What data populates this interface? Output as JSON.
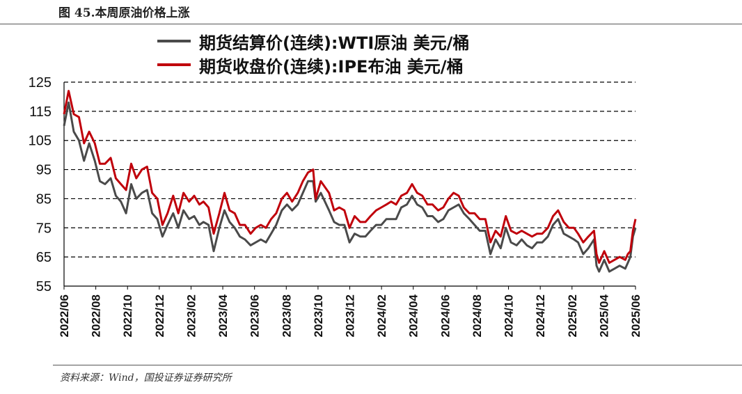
{
  "header": {
    "figure_title": "图 45.本周原油价格上涨"
  },
  "footer": {
    "source": "资料来源：Wind，国投证券证券研究所"
  },
  "colors": {
    "wti": "#4a4a4a",
    "ipe": "#c0000b",
    "grid": "#000000"
  },
  "chart_data": {
    "type": "line",
    "title": "",
    "xlabel": "",
    "ylabel": "",
    "ylim": [
      55,
      125
    ],
    "yticks": [
      55,
      65,
      75,
      85,
      95,
      105,
      115,
      125
    ],
    "xticks": [
      "2022/06",
      "2022/08",
      "2022/10",
      "2022/12",
      "2023/02",
      "2023/04",
      "2023/06",
      "2023/08",
      "2023/10",
      "2023/12",
      "2024/02",
      "2024/04",
      "2024/06",
      "2024/08",
      "2024/10",
      "2024/12",
      "2025/02",
      "2025/04",
      "2025/06"
    ],
    "grid": "horizontal dashed",
    "legend_position": "top-center",
    "series": [
      {
        "name": "期货结算价(连续):WTI原油 美元/桶",
        "color": "#4a4a4a",
        "points": [
          [
            "2022/06/01",
            110
          ],
          [
            "2022/06/10",
            118
          ],
          [
            "2022/06/20",
            108
          ],
          [
            "2022/06/30",
            105
          ],
          [
            "2022/07/10",
            98
          ],
          [
            "2022/07/20",
            104
          ],
          [
            "2022/07/31",
            98
          ],
          [
            "2022/08/10",
            91
          ],
          [
            "2022/08/20",
            90
          ],
          [
            "2022/08/31",
            92
          ],
          [
            "2022/09/10",
            86
          ],
          [
            "2022/09/20",
            84
          ],
          [
            "2022/09/30",
            80
          ],
          [
            "2022/10/10",
            90
          ],
          [
            "2022/10/20",
            85
          ],
          [
            "2022/10/31",
            87
          ],
          [
            "2022/11/10",
            88
          ],
          [
            "2022/11/20",
            80
          ],
          [
            "2022/11/30",
            78
          ],
          [
            "2022/12/10",
            72
          ],
          [
            "2022/12/20",
            76
          ],
          [
            "2022/12/31",
            80
          ],
          [
            "2023/01/10",
            75
          ],
          [
            "2023/01/20",
            81
          ],
          [
            "2023/01/31",
            78
          ],
          [
            "2023/02/10",
            79
          ],
          [
            "2023/02/20",
            76
          ],
          [
            "2023/02/28",
            77
          ],
          [
            "2023/03/10",
            76
          ],
          [
            "2023/03/20",
            67
          ],
          [
            "2023/03/31",
            75
          ],
          [
            "2023/04/10",
            81
          ],
          [
            "2023/04/20",
            77
          ],
          [
            "2023/04/30",
            75
          ],
          [
            "2023/05/10",
            72
          ],
          [
            "2023/05/20",
            71
          ],
          [
            "2023/05/31",
            69
          ],
          [
            "2023/06/10",
            70
          ],
          [
            "2023/06/20",
            71
          ],
          [
            "2023/06/30",
            70
          ],
          [
            "2023/07/10",
            73
          ],
          [
            "2023/07/20",
            76
          ],
          [
            "2023/07/31",
            81
          ],
          [
            "2023/08/10",
            83
          ],
          [
            "2023/08/20",
            81
          ],
          [
            "2023/08/31",
            83
          ],
          [
            "2023/09/10",
            87
          ],
          [
            "2023/09/20",
            91
          ],
          [
            "2023/09/30",
            91
          ],
          [
            "2023/10/05",
            84
          ],
          [
            "2023/10/15",
            87
          ],
          [
            "2023/10/31",
            81
          ],
          [
            "2023/11/10",
            77
          ],
          [
            "2023/11/20",
            76
          ],
          [
            "2023/11/30",
            76
          ],
          [
            "2023/12/10",
            70
          ],
          [
            "2023/12/20",
            73
          ],
          [
            "2023/12/31",
            72
          ],
          [
            "2024/01/10",
            72
          ],
          [
            "2024/01/20",
            74
          ],
          [
            "2024/01/31",
            76
          ],
          [
            "2024/02/10",
            76
          ],
          [
            "2024/02/20",
            78
          ],
          [
            "2024/02/29",
            78
          ],
          [
            "2024/03/10",
            78
          ],
          [
            "2024/03/20",
            82
          ],
          [
            "2024/03/31",
            83
          ],
          [
            "2024/04/10",
            86
          ],
          [
            "2024/04/20",
            83
          ],
          [
            "2024/04/30",
            82
          ],
          [
            "2024/05/10",
            79
          ],
          [
            "2024/05/20",
            79
          ],
          [
            "2024/05/31",
            77
          ],
          [
            "2024/06/10",
            78
          ],
          [
            "2024/06/20",
            81
          ],
          [
            "2024/06/30",
            82
          ],
          [
            "2024/07/10",
            83
          ],
          [
            "2024/07/20",
            80
          ],
          [
            "2024/07/31",
            78
          ],
          [
            "2024/08/10",
            76
          ],
          [
            "2024/08/20",
            74
          ],
          [
            "2024/08/31",
            74
          ],
          [
            "2024/09/10",
            66
          ],
          [
            "2024/09/20",
            71
          ],
          [
            "2024/09/30",
            68
          ],
          [
            "2024/10/10",
            75
          ],
          [
            "2024/10/20",
            70
          ],
          [
            "2024/10/31",
            69
          ],
          [
            "2024/11/10",
            71
          ],
          [
            "2024/11/20",
            69
          ],
          [
            "2024/11/30",
            68
          ],
          [
            "2024/12/10",
            70
          ],
          [
            "2024/12/20",
            70
          ],
          [
            "2024/12/31",
            72
          ],
          [
            "2025/01/10",
            76
          ],
          [
            "2025/01/20",
            78
          ],
          [
            "2025/01/31",
            73
          ],
          [
            "2025/02/10",
            72
          ],
          [
            "2025/02/20",
            71
          ],
          [
            "2025/02/28",
            70
          ],
          [
            "2025/03/10",
            66
          ],
          [
            "2025/03/20",
            68
          ],
          [
            "2025/03/31",
            71
          ],
          [
            "2025/04/05",
            62
          ],
          [
            "2025/04/10",
            60
          ],
          [
            "2025/04/20",
            64
          ],
          [
            "2025/04/30",
            60
          ],
          [
            "2025/05/10",
            61
          ],
          [
            "2025/05/20",
            62
          ],
          [
            "2025/05/31",
            61
          ],
          [
            "2025/06/05",
            63
          ],
          [
            "2025/06/10",
            65
          ],
          [
            "2025/06/15",
            72
          ],
          [
            "2025/06/20",
            75
          ]
        ]
      },
      {
        "name": "期货收盘价(连续):IPE布油 美元/桶",
        "color": "#c0000b",
        "points": [
          [
            "2022/06/01",
            114
          ],
          [
            "2022/06/10",
            122
          ],
          [
            "2022/06/20",
            114
          ],
          [
            "2022/06/30",
            113
          ],
          [
            "2022/07/10",
            104
          ],
          [
            "2022/07/20",
            108
          ],
          [
            "2022/07/31",
            104
          ],
          [
            "2022/08/10",
            97
          ],
          [
            "2022/08/20",
            97
          ],
          [
            "2022/08/31",
            99
          ],
          [
            "2022/09/10",
            92
          ],
          [
            "2022/09/20",
            90
          ],
          [
            "2022/09/30",
            88
          ],
          [
            "2022/10/10",
            97
          ],
          [
            "2022/10/20",
            92
          ],
          [
            "2022/10/31",
            95
          ],
          [
            "2022/11/10",
            96
          ],
          [
            "2022/11/20",
            87
          ],
          [
            "2022/11/30",
            85
          ],
          [
            "2022/12/10",
            76
          ],
          [
            "2022/12/20",
            80
          ],
          [
            "2022/12/31",
            86
          ],
          [
            "2023/01/10",
            80
          ],
          [
            "2023/01/20",
            87
          ],
          [
            "2023/01/31",
            84
          ],
          [
            "2023/02/10",
            86
          ],
          [
            "2023/02/20",
            83
          ],
          [
            "2023/02/28",
            84
          ],
          [
            "2023/03/10",
            82
          ],
          [
            "2023/03/20",
            73
          ],
          [
            "2023/03/31",
            80
          ],
          [
            "2023/04/10",
            87
          ],
          [
            "2023/04/20",
            81
          ],
          [
            "2023/04/30",
            80
          ],
          [
            "2023/05/10",
            76
          ],
          [
            "2023/05/20",
            76
          ],
          [
            "2023/05/31",
            73
          ],
          [
            "2023/06/10",
            75
          ],
          [
            "2023/06/20",
            76
          ],
          [
            "2023/06/30",
            75
          ],
          [
            "2023/07/10",
            78
          ],
          [
            "2023/07/20",
            80
          ],
          [
            "2023/07/31",
            85
          ],
          [
            "2023/08/10",
            87
          ],
          [
            "2023/08/20",
            84
          ],
          [
            "2023/08/31",
            87
          ],
          [
            "2023/09/10",
            91
          ],
          [
            "2023/09/20",
            94
          ],
          [
            "2023/09/30",
            95
          ],
          [
            "2023/10/05",
            85
          ],
          [
            "2023/10/15",
            91
          ],
          [
            "2023/10/31",
            87
          ],
          [
            "2023/11/10",
            81
          ],
          [
            "2023/11/20",
            82
          ],
          [
            "2023/11/30",
            81
          ],
          [
            "2023/12/10",
            75
          ],
          [
            "2023/12/20",
            79
          ],
          [
            "2023/12/31",
            77
          ],
          [
            "2024/01/10",
            77
          ],
          [
            "2024/01/20",
            79
          ],
          [
            "2024/01/31",
            81
          ],
          [
            "2024/02/10",
            82
          ],
          [
            "2024/02/20",
            83
          ],
          [
            "2024/02/29",
            84
          ],
          [
            "2024/03/10",
            83
          ],
          [
            "2024/03/20",
            86
          ],
          [
            "2024/03/31",
            87
          ],
          [
            "2024/04/10",
            90
          ],
          [
            "2024/04/20",
            87
          ],
          [
            "2024/04/30",
            86
          ],
          [
            "2024/05/10",
            83
          ],
          [
            "2024/05/20",
            83
          ],
          [
            "2024/05/31",
            81
          ],
          [
            "2024/06/10",
            82
          ],
          [
            "2024/06/20",
            85
          ],
          [
            "2024/06/30",
            87
          ],
          [
            "2024/07/10",
            86
          ],
          [
            "2024/07/20",
            82
          ],
          [
            "2024/07/31",
            80
          ],
          [
            "2024/08/10",
            80
          ],
          [
            "2024/08/20",
            78
          ],
          [
            "2024/08/31",
            78
          ],
          [
            "2024/09/10",
            70
          ],
          [
            "2024/09/20",
            74
          ],
          [
            "2024/09/30",
            72
          ],
          [
            "2024/10/10",
            79
          ],
          [
            "2024/10/20",
            74
          ],
          [
            "2024/10/31",
            73
          ],
          [
            "2024/11/10",
            74
          ],
          [
            "2024/11/20",
            73
          ],
          [
            "2024/11/30",
            72
          ],
          [
            "2024/12/10",
            73
          ],
          [
            "2024/12/20",
            73
          ],
          [
            "2024/12/31",
            75
          ],
          [
            "2025/01/10",
            79
          ],
          [
            "2025/01/20",
            81
          ],
          [
            "2025/01/31",
            77
          ],
          [
            "2025/02/10",
            75
          ],
          [
            "2025/02/20",
            75
          ],
          [
            "2025/02/28",
            73
          ],
          [
            "2025/03/10",
            70
          ],
          [
            "2025/03/20",
            72
          ],
          [
            "2025/03/31",
            74
          ],
          [
            "2025/04/05",
            66
          ],
          [
            "2025/04/10",
            63
          ],
          [
            "2025/04/20",
            67
          ],
          [
            "2025/04/30",
            63
          ],
          [
            "2025/05/10",
            64
          ],
          [
            "2025/05/20",
            65
          ],
          [
            "2025/05/31",
            64
          ],
          [
            "2025/06/05",
            66
          ],
          [
            "2025/06/10",
            67
          ],
          [
            "2025/06/15",
            74
          ],
          [
            "2025/06/20",
            78
          ]
        ]
      }
    ]
  }
}
